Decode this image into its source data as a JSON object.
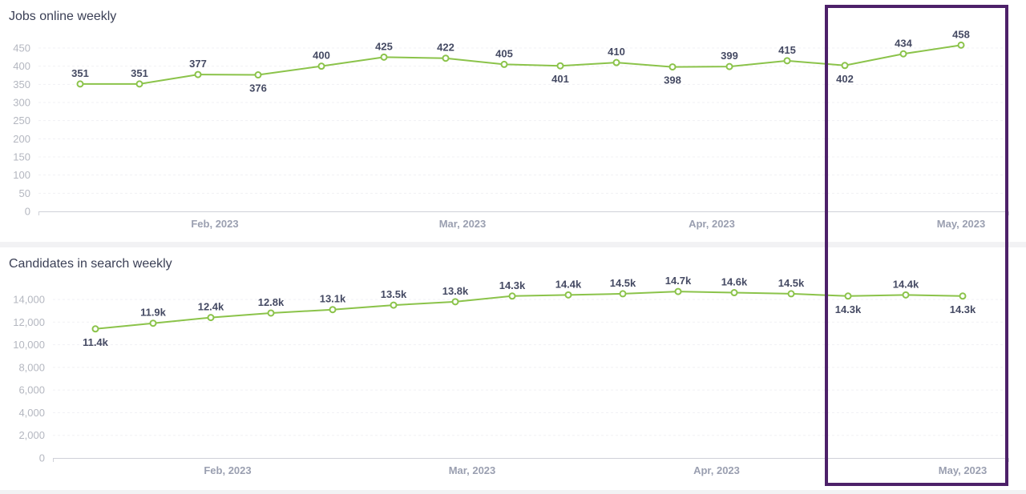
{
  "colors": {
    "line": "#8bc34a",
    "highlight": "#4d2169"
  },
  "chart_data": [
    {
      "type": "line",
      "title": "Jobs online weekly",
      "xlabel": "",
      "ylabel": "",
      "ylim": [
        0,
        450
      ],
      "y_ticks": [
        "0",
        "50",
        "100",
        "150",
        "200",
        "250",
        "300",
        "350",
        "400",
        "450"
      ],
      "x_ticks": [
        "Feb, 2023",
        "Mar, 2023",
        "Apr, 2023",
        "May, 2023"
      ],
      "series": [
        {
          "values": [
            351,
            351,
            377,
            376,
            400,
            425,
            422,
            405,
            401,
            410,
            398,
            399,
            415,
            402,
            434,
            458
          ],
          "labels": [
            "351",
            "351",
            "377",
            "376",
            "400",
            "425",
            "422",
            "405",
            "401",
            "410",
            "398",
            "399",
            "415",
            "402",
            "434",
            "458"
          ]
        }
      ],
      "grid": true
    },
    {
      "type": "line",
      "title": "Candidates in search weekly",
      "xlabel": "",
      "ylabel": "",
      "ylim": [
        0,
        14000
      ],
      "y_ticks": [
        "0",
        "2,000",
        "4,000",
        "6,000",
        "8,000",
        "10,000",
        "12,000",
        "14,000"
      ],
      "x_ticks": [
        "Feb, 2023",
        "Mar, 2023",
        "Apr, 2023",
        "May, 2023"
      ],
      "series": [
        {
          "values": [
            11400,
            11900,
            12400,
            12800,
            13100,
            13500,
            13800,
            14300,
            14400,
            14500,
            14700,
            14600,
            14500,
            14300,
            14400,
            14300
          ],
          "labels": [
            "11.4k",
            "11.9k",
            "12.4k",
            "12.8k",
            "13.1k",
            "13.5k",
            "13.8k",
            "14.3k",
            "14.4k",
            "14.5k",
            "14.7k",
            "14.6k",
            "14.5k",
            "14.3k",
            "14.4k",
            "14.3k"
          ]
        }
      ],
      "grid": true
    }
  ]
}
